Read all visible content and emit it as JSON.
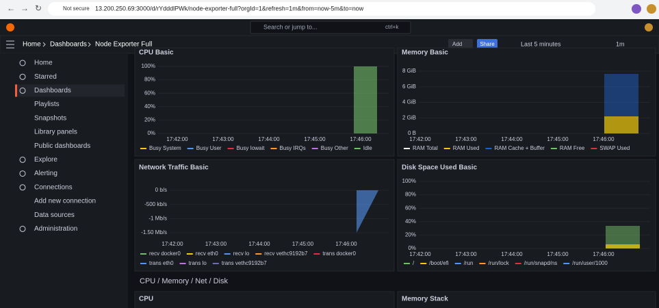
{
  "browser": {
    "security": "Not secure",
    "url": "13.200.250.69:3000/d/rYdddlPWk/node-exporter-full?orgId=1&refresh=1m&from=now-5m&to=now"
  },
  "topbar": {
    "search": "Search or jump to...",
    "shortcut": "ctrl+k"
  },
  "breadcrumbs": [
    "Home",
    "Dashboards",
    "Node Exporter Full"
  ],
  "toolbar": {
    "add": "Add",
    "share": "Share",
    "time_range": "Last 5 minutes",
    "refresh": "1m"
  },
  "sidebar": [
    {
      "label": "Home",
      "level": 0
    },
    {
      "label": "Starred",
      "level": 0
    },
    {
      "label": "Dashboards",
      "level": 0,
      "active": true
    },
    {
      "label": "Playlists",
      "level": 1
    },
    {
      "label": "Snapshots",
      "level": 1
    },
    {
      "label": "Library panels",
      "level": 1
    },
    {
      "label": "Public dashboards",
      "level": 1
    },
    {
      "label": "Explore",
      "level": 0
    },
    {
      "label": "Alerting",
      "level": 0
    },
    {
      "label": "Connections",
      "level": 0
    },
    {
      "label": "Add new connection",
      "level": 1
    },
    {
      "label": "Data sources",
      "level": 1
    },
    {
      "label": "Administration",
      "level": 0
    }
  ],
  "panels": [
    {
      "title": "CPU Basic",
      "yticks": [
        "100%",
        "80%",
        "60%",
        "40%",
        "20%",
        "0%"
      ],
      "xticks": [
        "17:42:00",
        "17:43:00",
        "17:44:00",
        "17:45:00",
        "17:46:00"
      ],
      "legend": [
        {
          "name": "Busy System",
          "color": "#f2cc0c"
        },
        {
          "name": "Busy User",
          "color": "#5794f2"
        },
        {
          "name": "Busy Iowait",
          "color": "#e02f44"
        },
        {
          "name": "Busy IRQs",
          "color": "#ff9830"
        },
        {
          "name": "Busy Other",
          "color": "#b877d9"
        },
        {
          "name": "Idle",
          "color": "#73bf69"
        }
      ]
    },
    {
      "title": "Memory Basic",
      "yticks": [
        "8 GiB",
        "6 GiB",
        "4 GiB",
        "2 GiB",
        "0 B"
      ],
      "xticks": [
        "17:42:00",
        "17:43:00",
        "17:44:00",
        "17:45:00",
        "17:46:00"
      ],
      "legend": [
        {
          "name": "RAM Total",
          "color": "#ffffff"
        },
        {
          "name": "RAM Used",
          "color": "#f2cc0c"
        },
        {
          "name": "RAM Cache + Buffer",
          "color": "#1f60c4"
        },
        {
          "name": "RAM Free",
          "color": "#73bf69"
        },
        {
          "name": "SWAP Used",
          "color": "#e02f44"
        }
      ]
    },
    {
      "title": "Network Traffic Basic",
      "yticks": [
        "0 b/s",
        "-500 kb/s",
        "-1 Mb/s",
        "-1.50 Mb/s"
      ],
      "xticks": [
        "17:42:00",
        "17:43:00",
        "17:44:00",
        "17:45:00",
        "17:46:00"
      ],
      "legend": [
        {
          "name": "recv docker0",
          "color": "#73bf69"
        },
        {
          "name": "recv eth0",
          "color": "#f2cc0c"
        },
        {
          "name": "recv lo",
          "color": "#5794f2"
        },
        {
          "name": "recv vethc9192b7",
          "color": "#ff9830"
        },
        {
          "name": "trans docker0",
          "color": "#e02f44"
        },
        {
          "name": "trans eth0",
          "color": "#5794f2"
        },
        {
          "name": "trans lo",
          "color": "#b877d9"
        },
        {
          "name": "trans vethc9192b7",
          "color": "#6e6ea8"
        }
      ]
    },
    {
      "title": "Disk Space Used Basic",
      "yticks": [
        "100%",
        "80%",
        "60%",
        "40%",
        "20%",
        "0%"
      ],
      "xticks": [
        "17:42:00",
        "17:43:00",
        "17:44:00",
        "17:45:00",
        "17:46:00"
      ],
      "legend": [
        {
          "name": "/",
          "color": "#73bf69"
        },
        {
          "name": "/boot/efi",
          "color": "#f2cc0c"
        },
        {
          "name": "/run",
          "color": "#5794f2"
        },
        {
          "name": "/run/lock",
          "color": "#ff9830"
        },
        {
          "name": "/run/snapd/ns",
          "color": "#e02f44"
        },
        {
          "name": "/run/user/1000",
          "color": "#5794f2"
        }
      ]
    }
  ],
  "row_title": "CPU / Memory / Net / Disk",
  "lower_panels": [
    "CPU",
    "Memory Stack"
  ]
}
